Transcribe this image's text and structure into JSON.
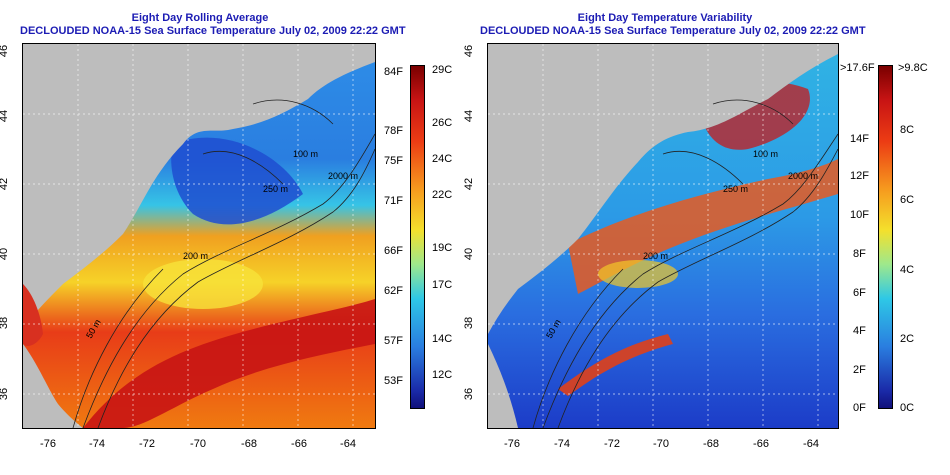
{
  "left": {
    "title_line1": "Eight Day Rolling Average",
    "title_line2": "DECLOUDED NOAA-15 Sea Surface Temperature July 02, 2009 22:22 GMT",
    "contour_labels": [
      "100 m",
      "250 m",
      "2000 m",
      "200 m",
      "50 m"
    ],
    "colorbar_f": [
      "84F",
      "78F",
      "75F",
      "71F",
      "66F",
      "62F",
      "57F",
      "53F"
    ],
    "colorbar_c": [
      "29C",
      "26C",
      "24C",
      "22C",
      "19C",
      "17C",
      "14C",
      "12C"
    ]
  },
  "right": {
    "title_line1": "Eight Day Temperature Variability",
    "title_line2": "DECLOUDED NOAA-15 Sea Surface Temperature July 02, 2009 22:22 GMT",
    "contour_labels": [
      "100 m",
      "250 m",
      "2000 m",
      "200 m",
      "50 m"
    ],
    "colorbar_f": [
      ">17.6F",
      "14F",
      "12F",
      "10F",
      "8F",
      "6F",
      "4F",
      "2F",
      "0F"
    ],
    "colorbar_c": [
      ">9.8C",
      "8C",
      "6C",
      "4C",
      "2C",
      "0C"
    ]
  },
  "axes": {
    "x_ticks": [
      "-76",
      "-74",
      "-72",
      "-70",
      "-68",
      "-66",
      "-64"
    ],
    "y_ticks": [
      "46",
      "44",
      "42",
      "40",
      "38",
      "36"
    ]
  },
  "colors": {
    "land": "#bdbdbd",
    "title": "#1c1cb4",
    "warm": "#c8141e",
    "cool": "#1e64dc"
  }
}
